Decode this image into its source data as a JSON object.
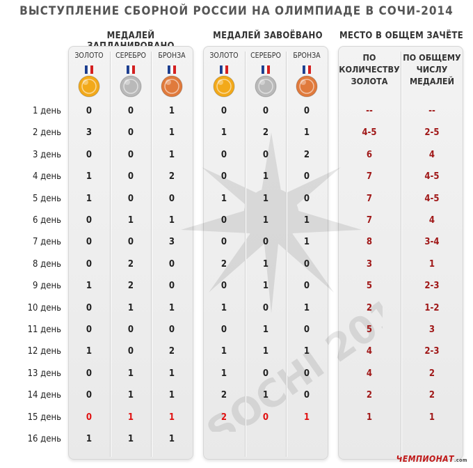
{
  "title": "ВЫСТУПЛЕНИЕ СБОРНОЙ РОССИИ НА ОЛИМПИАДЕ В СОЧИ-2014",
  "groups": {
    "planned": "МЕДАЛЕЙ ЗАПЛАНИРОВАНО",
    "won": "МЕДАЛЕЙ ЗАВОЁВАНО",
    "standing": "МЕСТО В ОБЩЕМ ЗАЧЁТЕ"
  },
  "medal_labels": {
    "gold": "ЗОЛОТО",
    "silver": "СЕРЕБРО",
    "bronze": "БРОНЗА"
  },
  "standing_labels": {
    "by_gold": [
      "ПО",
      "КОЛИЧЕСТВУ",
      "ЗОЛОТА"
    ],
    "by_total": [
      "ПО ОБЩЕМУ",
      "ЧИСЛУ",
      "МЕДАЛЕЙ"
    ]
  },
  "days": [
    "1 день",
    "2 день",
    "3 день",
    "4 день",
    "5 день",
    "6 день",
    "7 день",
    "8 день",
    "9 день",
    "10 день",
    "11 день",
    "12 день",
    "13 день",
    "14 день",
    "15 день",
    "16 день"
  ],
  "planned": [
    [
      "0",
      "0",
      "1"
    ],
    [
      "3",
      "0",
      "1"
    ],
    [
      "0",
      "0",
      "1"
    ],
    [
      "1",
      "0",
      "2"
    ],
    [
      "1",
      "0",
      "0"
    ],
    [
      "0",
      "1",
      "1"
    ],
    [
      "0",
      "0",
      "3"
    ],
    [
      "0",
      "2",
      "0"
    ],
    [
      "1",
      "2",
      "0"
    ],
    [
      "0",
      "1",
      "1"
    ],
    [
      "0",
      "0",
      "0"
    ],
    [
      "1",
      "0",
      "2"
    ],
    [
      "0",
      "1",
      "1"
    ],
    [
      "0",
      "1",
      "1"
    ],
    [
      "0",
      "1",
      "1"
    ],
    [
      "1",
      "1",
      "1"
    ]
  ],
  "won": [
    [
      "0",
      "0",
      "0"
    ],
    [
      "1",
      "2",
      "1"
    ],
    [
      "0",
      "0",
      "2"
    ],
    [
      "0",
      "1",
      "0"
    ],
    [
      "1",
      "1",
      "0"
    ],
    [
      "0",
      "1",
      "1"
    ],
    [
      "0",
      "0",
      "1"
    ],
    [
      "2",
      "1",
      "0"
    ],
    [
      "0",
      "1",
      "0"
    ],
    [
      "1",
      "0",
      "1"
    ],
    [
      "0",
      "1",
      "0"
    ],
    [
      "1",
      "1",
      "1"
    ],
    [
      "1",
      "0",
      "0"
    ],
    [
      "2",
      "1",
      "0"
    ],
    [
      "2",
      "0",
      "1"
    ]
  ],
  "standing": [
    [
      "--",
      "--"
    ],
    [
      "4-5",
      "2-5"
    ],
    [
      "6",
      "4"
    ],
    [
      "7",
      "4-5"
    ],
    [
      "7",
      "4-5"
    ],
    [
      "7",
      "4"
    ],
    [
      "8",
      "3-4"
    ],
    [
      "3",
      "1"
    ],
    [
      "5",
      "2-3"
    ],
    [
      "2",
      "1-2"
    ],
    [
      "5",
      "3"
    ],
    [
      "4",
      "2-3"
    ],
    [
      "4",
      "2"
    ],
    [
      "2",
      "2"
    ],
    [
      "1",
      "1"
    ]
  ],
  "highlight_day_index": 14,
  "watermark": "SOCHI 2014",
  "brand": "ЧЕМПИОНАТ",
  "brand_suffix": ".com",
  "colors": {
    "gold": "#f2a91a",
    "silver": "#b9b9b9",
    "bronze": "#e07a3c",
    "highlight": "#e01010",
    "standing": "#a01818"
  }
}
